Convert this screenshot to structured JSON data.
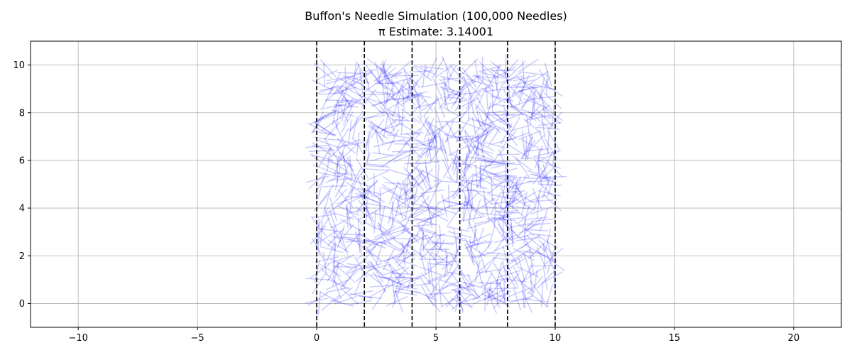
{
  "chart_data": {
    "type": "scatter",
    "title": "Buffon's Needle Simulation (100,000 Needles)",
    "subtitle": "π Estimate: 3.14001",
    "xlabel": "",
    "ylabel": "",
    "xlim": [
      -12,
      22
    ],
    "ylim": [
      -1,
      11
    ],
    "x_ticks": [
      -10,
      -5,
      0,
      5,
      10,
      15,
      20
    ],
    "y_ticks": [
      0,
      2,
      4,
      6,
      8,
      10
    ],
    "grid": true,
    "vertical_lines": {
      "x": [
        0,
        2,
        4,
        6,
        8,
        10
      ],
      "style": "dashed",
      "color": "#000000"
    },
    "needles": {
      "count_total": 100000,
      "needle_length": 1,
      "center_x_range": [
        0,
        10
      ],
      "center_y_range": [
        0,
        10
      ],
      "color": "#0000ff",
      "opacity": 0.2
    }
  },
  "colors": {
    "grid": "#b0b0b0",
    "axes": "#000000",
    "needle": "#0000ff"
  }
}
